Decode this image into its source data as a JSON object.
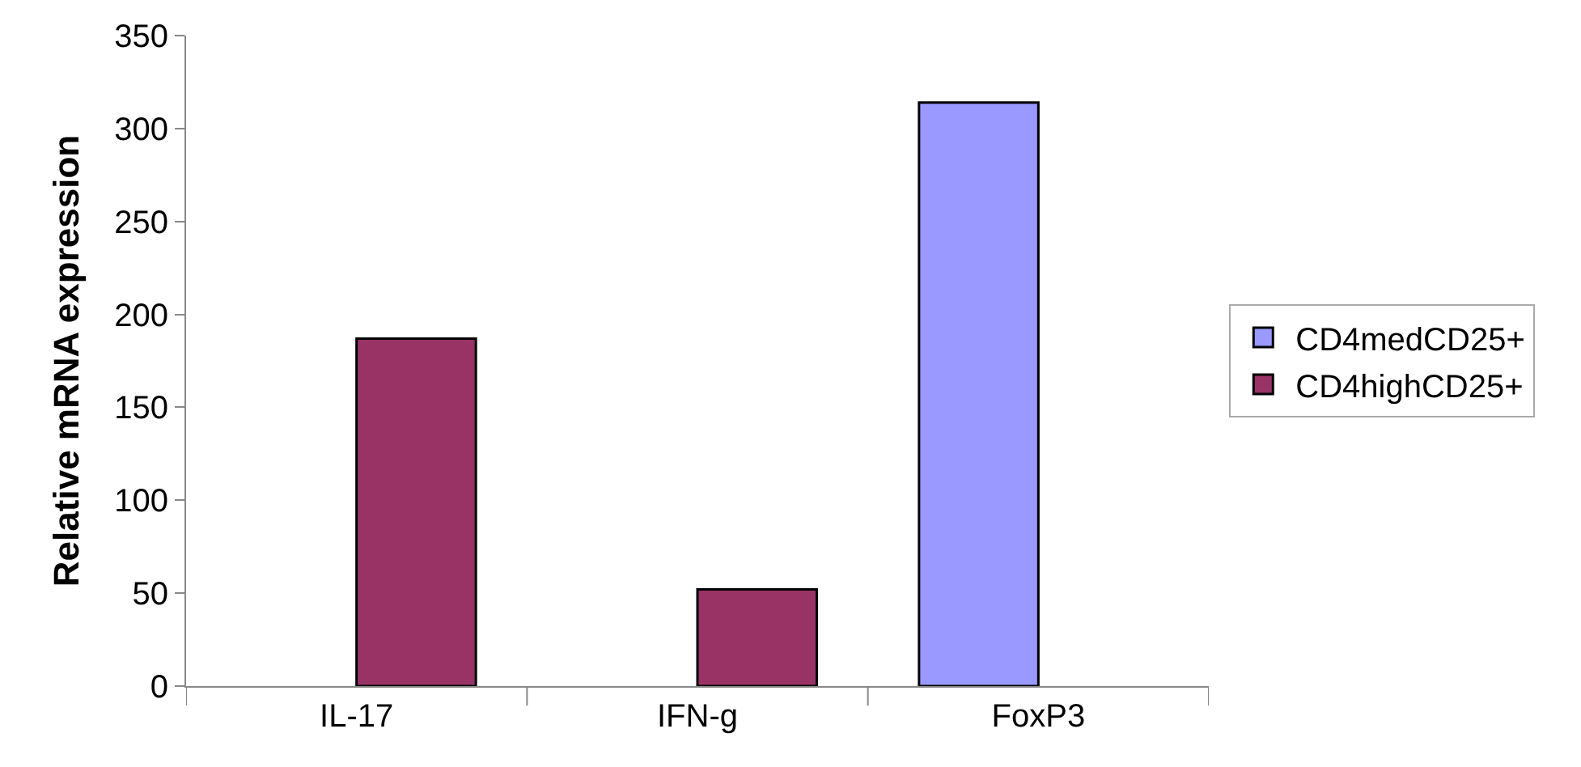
{
  "chart_data": {
    "type": "bar",
    "ylabel": "Relative mRNA expression",
    "categories": [
      "IL-17",
      "IFN-g",
      "FoxP3"
    ],
    "series": [
      {
        "name": "CD4medCD25+",
        "color": "#9999ff",
        "values": [
          null,
          null,
          314
        ]
      },
      {
        "name": "CD4highCD25+",
        "color": "#993366",
        "values": [
          187,
          52,
          null
        ]
      }
    ],
    "ylim": [
      0,
      350
    ],
    "yticks": [
      0,
      50,
      100,
      150,
      200,
      250,
      300,
      350
    ],
    "legend": "right"
  }
}
